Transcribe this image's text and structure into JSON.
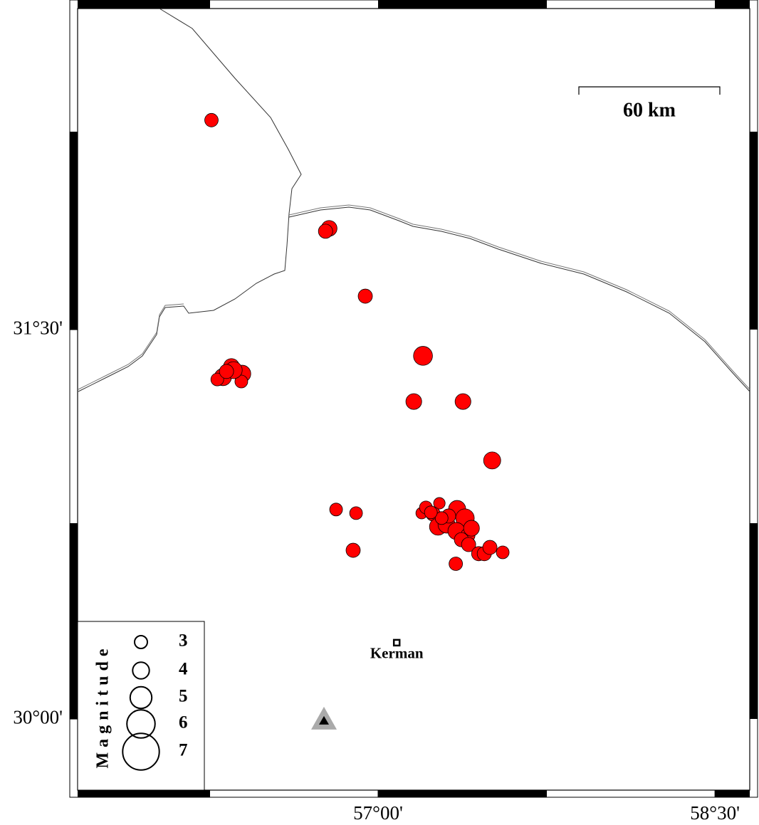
{
  "map": {
    "lon_range": [
      55.662,
      58.655
    ],
    "lat_range": [
      29.726,
      32.737
    ],
    "lon_ticks": [
      {
        "value": 57,
        "label": "57°00'"
      },
      {
        "value": 58.5,
        "label": "58°30'"
      }
    ],
    "lat_ticks": [
      {
        "value": 31.5,
        "label": "31°30'"
      },
      {
        "value": 30,
        "label": "30°00'"
      }
    ],
    "event_color": "#ff0000",
    "events": [
      {
        "lon": 56.258,
        "lat": 32.307,
        "magnitude": 3.2
      },
      {
        "lon": 56.782,
        "lat": 31.89,
        "magnitude": 3.8
      },
      {
        "lon": 56.766,
        "lat": 31.879,
        "magnitude": 3.4
      },
      {
        "lon": 56.943,
        "lat": 31.629,
        "magnitude": 3.4
      },
      {
        "lon": 57.2,
        "lat": 31.399,
        "magnitude": 4.5
      },
      {
        "lon": 57.159,
        "lat": 31.223,
        "magnitude": 3.8
      },
      {
        "lon": 57.378,
        "lat": 31.223,
        "magnitude": 3.8
      },
      {
        "lon": 57.508,
        "lat": 30.996,
        "magnitude": 4.1
      },
      {
        "lon": 56.813,
        "lat": 30.807,
        "magnitude": 3.0
      },
      {
        "lon": 56.902,
        "lat": 30.793,
        "magnitude": 3.0
      },
      {
        "lon": 56.889,
        "lat": 30.65,
        "magnitude": 3.4
      },
      {
        "lon": 57.346,
        "lat": 30.598,
        "magnitude": 3.2
      },
      {
        "lon": 56.309,
        "lat": 31.317,
        "magnitude": 4.1
      },
      {
        "lon": 56.347,
        "lat": 31.358,
        "magnitude": 3.8
      },
      {
        "lon": 56.395,
        "lat": 31.33,
        "magnitude": 4.1
      },
      {
        "lon": 56.284,
        "lat": 31.308,
        "magnitude": 3.0
      },
      {
        "lon": 56.391,
        "lat": 31.3,
        "magnitude": 3.0
      },
      {
        "lon": 56.357,
        "lat": 31.344,
        "magnitude": 4.1
      },
      {
        "lon": 56.325,
        "lat": 31.339,
        "magnitude": 3.4
      },
      {
        "lon": 57.194,
        "lat": 30.793,
        "magnitude": 2.6
      },
      {
        "lon": 57.213,
        "lat": 30.815,
        "magnitude": 3.0
      },
      {
        "lon": 57.273,
        "lat": 30.831,
        "magnitude": 2.6
      },
      {
        "lon": 57.245,
        "lat": 30.79,
        "magnitude": 3.4
      },
      {
        "lon": 57.267,
        "lat": 30.741,
        "magnitude": 4.1
      },
      {
        "lon": 57.305,
        "lat": 30.749,
        "magnitude": 4.1
      },
      {
        "lon": 57.352,
        "lat": 30.809,
        "magnitude": 4.1
      },
      {
        "lon": 57.387,
        "lat": 30.774,
        "magnitude": 4.4
      },
      {
        "lon": 57.349,
        "lat": 30.724,
        "magnitude": 4.1
      },
      {
        "lon": 57.4,
        "lat": 30.708,
        "magnitude": 3.4
      },
      {
        "lon": 57.416,
        "lat": 30.735,
        "magnitude": 3.8
      },
      {
        "lon": 57.371,
        "lat": 30.691,
        "magnitude": 3.4
      },
      {
        "lon": 57.403,
        "lat": 30.672,
        "magnitude": 3.4
      },
      {
        "lon": 57.448,
        "lat": 30.637,
        "magnitude": 3.4
      },
      {
        "lon": 57.473,
        "lat": 30.637,
        "magnitude": 3.4
      },
      {
        "lon": 57.498,
        "lat": 30.661,
        "magnitude": 3.4
      },
      {
        "lon": 57.555,
        "lat": 30.642,
        "magnitude": 3.0
      },
      {
        "lon": 57.314,
        "lat": 30.782,
        "magnitude": 3.4
      },
      {
        "lon": 57.283,
        "lat": 30.774,
        "magnitude": 3.0
      },
      {
        "lon": 57.235,
        "lat": 30.796,
        "magnitude": 3.0
      }
    ],
    "city": {
      "label": "Kerman",
      "lon": 57.083,
      "lat": 30.294
    },
    "station": {
      "lon": 56.759,
      "lat": 29.995
    },
    "scale_bar": {
      "label": "60 km"
    },
    "legend": {
      "title": "Magnitude",
      "magnitudes": [
        3,
        4,
        5,
        6,
        7
      ]
    }
  }
}
